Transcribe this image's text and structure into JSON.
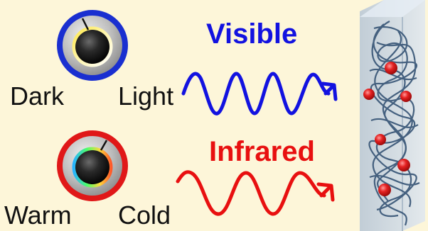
{
  "visible_panel": {
    "title": "Visible",
    "left_label": "Dark",
    "right_label": "Light",
    "color": "#1212e0",
    "knob_ring_color": "#1a2fd0"
  },
  "infrared_panel": {
    "title": "Infrared",
    "left_label": "Warm",
    "right_label": "Cold",
    "color": "#e81010",
    "knob_ring_color": "#e01818"
  },
  "material": {
    "fiber_color": "#3d5a7a",
    "particle_color": "#e52222",
    "panel_color": "#c9d6e4"
  },
  "background": "#fdf6d9"
}
